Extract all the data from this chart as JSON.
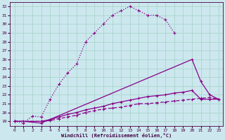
{
  "xlabel": "Windchill (Refroidissement éolien,°C)",
  "bg_color": "#cce8ee",
  "grid_color": "#aad4cc",
  "line_color": "#880088",
  "xlim": [
    -0.5,
    23.5
  ],
  "ylim": [
    18.5,
    32.5
  ],
  "yticks": [
    19,
    20,
    21,
    22,
    23,
    24,
    25,
    26,
    27,
    28,
    29,
    30,
    31,
    32
  ],
  "xticks": [
    0,
    1,
    2,
    3,
    4,
    5,
    6,
    7,
    8,
    9,
    10,
    11,
    12,
    13,
    14,
    15,
    16,
    17,
    18,
    19,
    20,
    21,
    22,
    23
  ],
  "curve1_x": [
    0,
    1,
    2,
    3,
    4,
    5,
    6,
    7,
    8,
    9,
    10,
    11,
    12,
    13,
    14,
    15,
    16,
    17,
    18
  ],
  "curve1_y": [
    19,
    18.8,
    19.6,
    19.5,
    21.5,
    23.2,
    24.5,
    25.5,
    28.0,
    29.0,
    30.0,
    31.0,
    31.5,
    32.0,
    31.5,
    31.0,
    31.0,
    30.5,
    29.0
  ],
  "curve2_x": [
    0,
    3,
    4,
    5,
    6,
    7,
    8,
    9,
    10,
    11,
    12,
    13,
    14,
    15,
    16,
    17,
    18,
    19,
    20,
    21,
    22,
    23
  ],
  "curve2_y": [
    19,
    19.0,
    19.2,
    19.5,
    19.8,
    20.0,
    20.3,
    20.5,
    20.7,
    21.0,
    21.2,
    21.4,
    21.6,
    21.8,
    21.9,
    22.0,
    22.2,
    22.3,
    22.5,
    21.5,
    21.5,
    21.5
  ],
  "curve3_x": [
    0,
    3,
    4,
    5,
    6,
    7,
    8,
    9,
    10,
    11,
    12,
    13,
    14,
    15,
    16,
    17,
    18,
    19,
    20,
    21,
    22,
    23
  ],
  "curve3_y": [
    19,
    19.0,
    19.1,
    19.3,
    19.5,
    19.7,
    20.0,
    20.2,
    20.4,
    20.5,
    20.6,
    20.8,
    21.0,
    21.0,
    21.1,
    21.2,
    21.3,
    21.4,
    21.5,
    21.6,
    21.7,
    21.5
  ],
  "curve4_x": [
    0,
    1,
    3,
    20,
    21,
    22,
    23
  ],
  "curve4_y": [
    19,
    19.0,
    18.8,
    26.0,
    23.5,
    22.0,
    21.5
  ]
}
